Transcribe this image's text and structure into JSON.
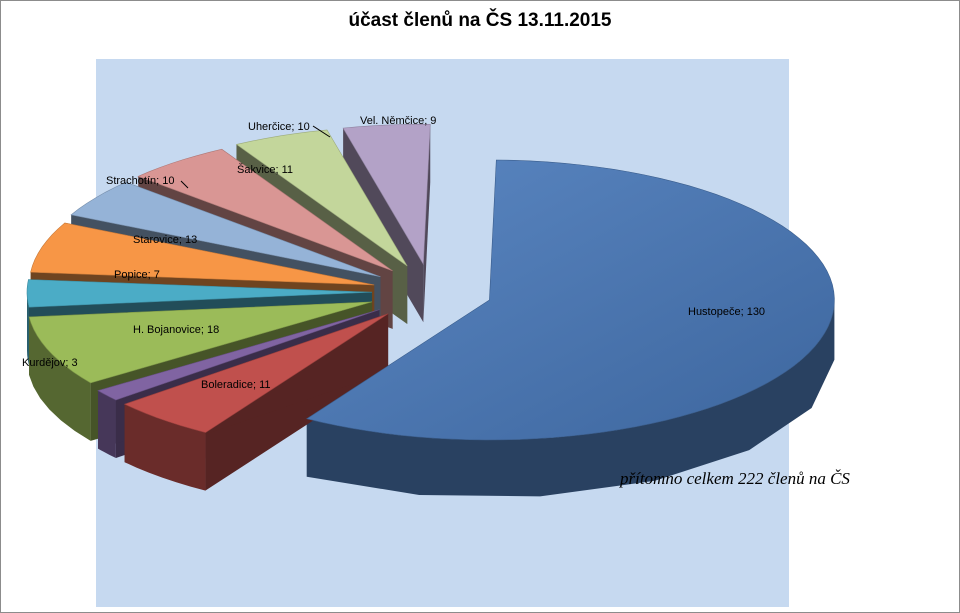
{
  "chart_data": {
    "type": "pie",
    "title": "účast členů na ČS 13.11.2015",
    "labels": [
      "Hustopeče",
      "Boleradice",
      "Kurdějov",
      "H. Bojanovice",
      "Popice",
      "Starovice",
      "Strachotín",
      "Šakvice",
      "Uherčice",
      "Vel. Němčice"
    ],
    "values": [
      130,
      11,
      3,
      18,
      7,
      13,
      10,
      11,
      10,
      9
    ],
    "colors": [
      "#4a76b0",
      "#c0504d",
      "#8064a2",
      "#9bbb59",
      "#4bacc6",
      "#f79646",
      "#95b3d7",
      "#d99694",
      "#c3d69b",
      "#b3a2c7"
    ],
    "data_labels": [
      "Hustopeče; 130",
      "Boleradice; 11",
      "Kurdějov; 3",
      "H. Bojanovice; 18",
      "Popice; 7",
      "Starovice; 13",
      "Strachotín; 10",
      "Šakvice; 11",
      "Uherčice; 10",
      "Vel. Němčice; 9"
    ],
    "style": "3d-exploded",
    "legend": "none",
    "plot_background": "#c6d9f0"
  },
  "annotation": "přítomno celkem 222 členů na ČS"
}
